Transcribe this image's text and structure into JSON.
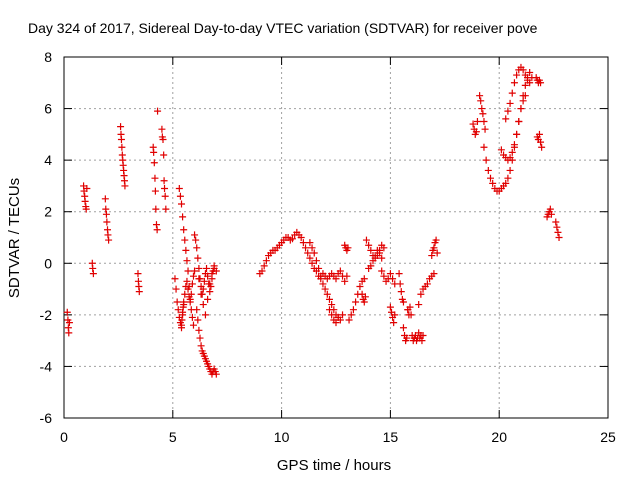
{
  "chart_data": {
    "type": "scatter",
    "title": "Day 324 of 2017, Sidereal Day-to-day VTEC variation (SDTVAR) for receiver pove",
    "xlabel": "GPS time / hours",
    "ylabel": "SDTVAR / TECUs",
    "xlim": [
      0,
      25
    ],
    "ylim": [
      -6,
      8
    ],
    "xticks": [
      0,
      5,
      10,
      15,
      20,
      25
    ],
    "yticks": [
      -6,
      -4,
      -2,
      0,
      2,
      4,
      6,
      8
    ],
    "grid": true,
    "marker": "+",
    "colors": {
      "series": "#e00000",
      "axis": "#000000",
      "grid": "#a0a0a0"
    },
    "series": [
      {
        "name": "SDTVAR",
        "x": [
          0.15,
          0.18,
          0.2,
          0.22,
          0.25,
          0.9,
          0.92,
          0.95,
          0.97,
          1.0,
          1.02,
          1.05,
          1.3,
          1.32,
          1.35,
          1.9,
          1.92,
          1.95,
          1.97,
          2.0,
          2.02,
          2.05,
          2.6,
          2.62,
          2.64,
          2.66,
          2.68,
          2.7,
          2.72,
          2.74,
          2.76,
          2.78,
          2.8,
          3.4,
          3.42,
          3.44,
          3.46,
          4.1,
          4.12,
          4.15,
          4.18,
          4.2,
          4.22,
          4.25,
          4.28,
          4.3,
          4.5,
          4.52,
          4.55,
          4.58,
          4.6,
          4.62,
          4.65,
          4.68,
          5.1,
          5.15,
          5.2,
          5.25,
          5.3,
          5.35,
          5.4,
          5.45,
          5.5,
          5.55,
          5.6,
          5.65,
          5.7,
          5.75,
          5.8,
          5.85,
          5.9,
          5.95,
          6.0,
          5.3,
          5.35,
          5.4,
          5.45,
          5.5,
          5.55,
          5.6,
          5.65,
          5.7,
          5.75,
          5.8,
          5.85,
          5.9,
          5.95,
          5.4,
          5.42,
          5.45,
          5.48,
          5.5,
          6.0,
          6.05,
          6.1,
          6.15,
          6.2,
          6.25,
          6.3,
          6.35,
          6.4,
          6.45,
          6.5,
          6.55,
          6.6,
          6.65,
          6.7,
          6.75,
          6.8,
          6.85,
          6.9,
          6.1,
          6.15,
          6.2,
          6.25,
          6.3,
          6.35,
          6.4,
          6.45,
          6.5,
          6.55,
          6.6,
          6.65,
          6.7,
          6.75,
          6.8,
          6.85,
          6.9,
          6.95,
          7.0,
          6.2,
          6.3,
          6.4,
          6.5,
          6.6,
          6.7,
          6.8,
          6.9,
          7.0,
          9.0,
          9.1,
          9.2,
          9.3,
          9.4,
          9.5,
          9.6,
          9.7,
          9.8,
          9.9,
          10.0,
          10.1,
          10.2,
          10.3,
          10.4,
          10.5,
          10.6,
          10.7,
          10.8,
          10.9,
          11.0,
          11.1,
          11.2,
          11.3,
          11.4,
          11.5,
          11.6,
          11.7,
          11.8,
          11.9,
          12.0,
          12.1,
          12.2,
          12.3,
          12.4,
          12.5,
          12.6,
          12.7,
          12.8,
          12.9,
          13.0,
          11.3,
          11.4,
          11.5,
          11.6,
          11.7,
          11.8,
          11.9,
          12.0,
          12.1,
          12.2,
          12.3,
          12.4,
          12.5,
          12.6,
          12.7,
          12.8,
          12.2,
          12.3,
          12.4,
          12.5,
          12.6,
          12.9,
          12.95,
          13.0,
          13.05,
          13.1,
          13.2,
          13.3,
          13.4,
          13.5,
          13.6,
          13.7,
          13.8,
          13.7,
          13.75,
          13.8,
          13.85,
          13.9,
          14.0,
          14.1,
          14.2,
          14.3,
          14.4,
          14.5,
          14.6,
          14.7,
          14.0,
          14.1,
          14.2,
          14.3,
          14.4,
          14.5,
          14.6,
          14.6,
          14.7,
          14.8,
          14.9,
          15.0,
          15.1,
          15.2,
          15.0,
          15.05,
          15.1,
          15.15,
          15.2,
          15.4,
          15.45,
          15.5,
          15.55,
          15.6,
          15.6,
          15.65,
          15.7,
          15.75,
          15.8,
          15.8,
          15.85,
          15.9,
          15.95,
          16.0,
          16.05,
          16.1,
          16.15,
          16.2,
          16.25,
          16.3,
          16.35,
          16.4,
          16.45,
          16.5,
          16.3,
          16.4,
          16.5,
          16.6,
          16.7,
          16.8,
          16.9,
          17.0,
          16.9,
          16.95,
          17.0,
          17.05,
          17.1,
          17.15,
          18.8,
          18.85,
          18.9,
          18.95,
          19.0,
          19.1,
          19.15,
          19.2,
          19.25,
          19.3,
          19.35,
          19.3,
          19.4,
          19.5,
          19.6,
          19.7,
          19.8,
          19.9,
          20.0,
          20.1,
          20.2,
          20.3,
          20.4,
          20.5,
          20.6,
          20.7,
          20.8,
          20.9,
          21.0,
          21.1,
          21.2,
          20.1,
          20.2,
          20.3,
          20.4,
          20.5,
          20.6,
          20.7,
          20.8,
          20.9,
          21.0,
          21.1,
          21.2,
          21.3,
          21.4,
          20.3,
          20.4,
          20.5,
          20.6,
          20.7,
          20.8,
          20.9,
          21.0,
          21.1,
          21.2,
          21.3,
          21.4,
          21.5,
          21.7,
          21.75,
          21.8,
          21.85,
          21.9,
          21.75,
          21.8,
          21.85,
          21.9,
          21.95,
          22.2,
          22.25,
          22.3,
          22.35,
          22.4,
          22.6,
          22.65,
          22.7,
          22.75
        ],
        "y": [
          -1.9,
          -2.2,
          -2.5,
          -2.7,
          -2.3,
          3.0,
          2.8,
          2.6,
          2.4,
          2.2,
          2.1,
          2.9,
          0.0,
          -0.2,
          -0.4,
          2.5,
          2.1,
          1.9,
          1.6,
          1.3,
          1.1,
          0.9,
          5.3,
          5.0,
          4.8,
          4.5,
          4.2,
          4.0,
          3.8,
          3.6,
          3.4,
          3.2,
          3.0,
          -0.4,
          -0.7,
          -0.9,
          -1.1,
          4.5,
          4.3,
          3.9,
          3.3,
          2.8,
          2.1,
          1.5,
          1.3,
          5.9,
          5.2,
          4.9,
          4.8,
          4.2,
          3.2,
          2.9,
          2.6,
          2.1,
          -0.6,
          -1.0,
          -1.5,
          -1.8,
          -2.1,
          -2.3,
          -2.4,
          -2.0,
          -1.6,
          -1.2,
          -0.9,
          -0.7,
          -1.0,
          -1.3,
          -1.5,
          -1.2,
          -0.8,
          -0.5,
          -0.3,
          2.9,
          2.6,
          2.3,
          1.8,
          1.3,
          0.9,
          0.5,
          0.1,
          -0.3,
          -0.9,
          -1.4,
          -1.8,
          -2.1,
          -2.4,
          -2.5,
          -2.2,
          -1.9,
          -1.7,
          -1.5,
          1.1,
          0.9,
          0.6,
          0.2,
          -0.2,
          -0.6,
          -0.9,
          -1.2,
          -1.0,
          -0.7,
          -0.4,
          -0.2,
          -0.5,
          -0.8,
          -1.1,
          -0.9,
          -0.6,
          -0.3,
          -0.1,
          -1.8,
          -2.2,
          -2.6,
          -2.9,
          -3.2,
          -3.4,
          -3.5,
          -3.6,
          -3.7,
          -3.8,
          -3.9,
          -4.0,
          -4.1,
          -4.2,
          -4.3,
          -4.2,
          -4.1,
          -4.2,
          -4.3,
          -0.6,
          -1.2,
          -1.6,
          -2.0,
          -1.4,
          -0.8,
          -0.4,
          -0.2,
          -0.3,
          -0.4,
          -0.3,
          -0.1,
          0.1,
          0.3,
          0.4,
          0.5,
          0.5,
          0.6,
          0.7,
          0.8,
          0.9,
          1.0,
          1.0,
          0.9,
          0.95,
          1.1,
          1.2,
          1.1,
          1.0,
          0.8,
          0.6,
          0.4,
          0.2,
          0.0,
          -0.2,
          -0.3,
          -0.5,
          -0.6,
          -0.4,
          -0.5,
          -0.6,
          -0.5,
          -0.4,
          -0.5,
          -0.6,
          -0.4,
          -0.3,
          -0.5,
          -0.7,
          -0.5,
          0.8,
          0.6,
          0.4,
          0.1,
          -0.2,
          -0.5,
          -0.8,
          -1.0,
          -1.2,
          -1.4,
          -1.6,
          -1.8,
          -2.0,
          -2.1,
          -2.2,
          -2.0,
          -1.8,
          -2.0,
          -2.2,
          -2.3,
          -2.1,
          0.7,
          0.6,
          0.5,
          0.6,
          -2.2,
          -2.0,
          -1.8,
          -1.5,
          -1.2,
          -0.9,
          -0.7,
          -0.6,
          -1.2,
          -1.4,
          -1.5,
          -1.3,
          0.9,
          0.7,
          0.5,
          0.3,
          0.2,
          0.3,
          0.5,
          0.7,
          0.6,
          -0.2,
          -0.1,
          0.1,
          0.3,
          0.5,
          0.4,
          0.2,
          -0.3,
          -0.5,
          -0.7,
          -0.6,
          -0.4,
          -0.6,
          -0.8,
          -1.7,
          -1.9,
          -2.1,
          -2.3,
          -2.0,
          -0.4,
          -0.8,
          -1.1,
          -1.4,
          -1.5,
          -2.5,
          -2.8,
          -3.0,
          -2.9,
          -1.8,
          -1.8,
          -2.0,
          -1.7,
          -2.0,
          -2.8,
          -3.0,
          -2.9,
          -2.8,
          -3.0,
          -2.9,
          -2.7,
          -2.9,
          -2.8,
          -3.0,
          -2.8,
          -1.6,
          -1.2,
          -1.0,
          -0.9,
          -0.8,
          -0.6,
          -0.5,
          -0.4,
          0.3,
          0.5,
          0.6,
          0.8,
          0.9,
          0.4,
          5.4,
          5.2,
          5.0,
          5.1,
          5.5,
          6.5,
          6.3,
          6.0,
          5.8,
          5.5,
          5.2,
          4.5,
          4.0,
          3.6,
          3.3,
          3.1,
          2.9,
          2.8,
          2.8,
          2.9,
          3.0,
          3.1,
          3.3,
          3.6,
          4.0,
          4.5,
          5.0,
          5.5,
          6.0,
          6.3,
          6.5,
          4.4,
          4.2,
          4.1,
          4.0,
          4.1,
          4.3,
          4.6,
          5.0,
          5.5,
          6.0,
          6.5,
          6.9,
          7.2,
          7.4,
          5.6,
          5.9,
          6.2,
          6.6,
          7.0,
          7.3,
          7.5,
          7.6,
          7.5,
          7.3,
          7.1,
          7.0,
          7.2,
          7.2,
          7.1,
          7.0,
          7.1,
          7.0,
          4.9,
          4.8,
          5.0,
          4.7,
          4.5,
          1.8,
          1.9,
          2.0,
          2.1,
          1.9,
          1.6,
          1.4,
          1.2,
          1.0
        ]
      }
    ]
  }
}
